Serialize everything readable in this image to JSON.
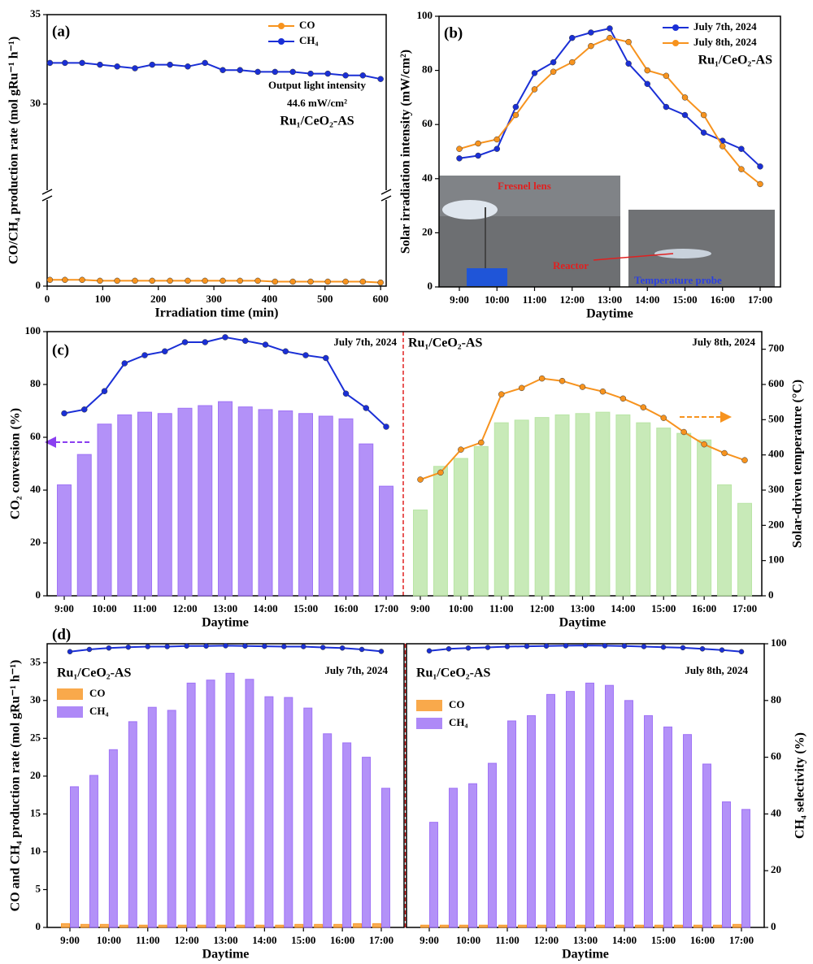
{
  "chart_data": [
    {
      "type": "line",
      "label": "(a)",
      "xlabel": "Irradiation time (min)",
      "ylabel": "CO/CH₄ production rate (mol gRu⁻¹ h⁻¹)",
      "xlim": [
        0,
        610
      ],
      "xticks": [
        0,
        100,
        200,
        300,
        400,
        500,
        600
      ],
      "ylim": [
        0,
        35
      ],
      "ybreak": [
        5,
        25
      ],
      "yticks": [
        0,
        30,
        35
      ],
      "legend": "upper right",
      "x": [
        5,
        32,
        63,
        95,
        126,
        158,
        189,
        221,
        253,
        284,
        316,
        347,
        379,
        410,
        442,
        474,
        505,
        537,
        568,
        600
      ],
      "series": [
        {
          "name": "CO",
          "color": "#f7931e",
          "values": [
            0.35,
            0.35,
            0.35,
            0.3,
            0.3,
            0.3,
            0.3,
            0.3,
            0.3,
            0.3,
            0.3,
            0.3,
            0.3,
            0.25,
            0.25,
            0.25,
            0.25,
            0.25,
            0.25,
            0.2
          ]
        },
        {
          "name": "CH₄",
          "color": "#1a2fd6",
          "values": [
            32.3,
            32.3,
            32.3,
            32.2,
            32.1,
            32.0,
            32.2,
            32.2,
            32.1,
            32.3,
            31.9,
            31.9,
            31.8,
            31.8,
            31.8,
            31.7,
            31.7,
            31.6,
            31.6,
            31.4
          ]
        }
      ],
      "annotations": [
        "Output light intensity",
        "44.6 mW/cm²",
        "Ru₁/CeO₂-AS"
      ]
    },
    {
      "type": "line",
      "label": "(b)",
      "xlabel": "Daytime",
      "ylabel": "Solar irradiation intensity (mW/cm²)",
      "categories": [
        "9:00",
        null,
        "10:00",
        null,
        "11:00",
        null,
        "12:00",
        null,
        "13:00",
        null,
        "14:00",
        null,
        "15:00",
        null,
        "16:00",
        null,
        "17:00"
      ],
      "ylim": [
        0,
        100
      ],
      "yticks": [
        0,
        20,
        40,
        60,
        80,
        100
      ],
      "legend": "upper right",
      "series": [
        {
          "name": "July 7th, 2024",
          "color": "#1a2fd6",
          "values": [
            47.5,
            48.5,
            51,
            66.5,
            79,
            83,
            92,
            94,
            95.5,
            82.5,
            75,
            66.5,
            63.5,
            57,
            54,
            51,
            44.5
          ]
        },
        {
          "name": "July 8th, 2024",
          "color": "#f7931e",
          "values": [
            51,
            53,
            54.5,
            63.5,
            73,
            79.5,
            83,
            89,
            92,
            90.5,
            80,
            78,
            70,
            63.5,
            52,
            43.5,
            38
          ]
        }
      ],
      "annotation": "Ru₁/CeO₂-AS",
      "inset_labels": [
        "Fresnel lens",
        "Reactor",
        "Temperature probe"
      ]
    },
    {
      "type": "bar-line",
      "label": "(c)",
      "xlabel": "Daytime",
      "ylabel": "CO₂ conversion (%)",
      "y2label": "Solar-driven temperature (°C)",
      "categories": [
        "9:00",
        null,
        "10:00",
        null,
        "11:00",
        null,
        "12:00",
        null,
        "13:00",
        null,
        "14:00",
        null,
        "15:00",
        null,
        "16:00",
        null,
        "17:00"
      ],
      "ylim": [
        0,
        100
      ],
      "yticks": [
        0,
        20,
        40,
        60,
        80,
        100
      ],
      "y2lim": [
        0,
        750
      ],
      "y2ticks": [
        0,
        100,
        200,
        300,
        400,
        500,
        600,
        700
      ],
      "annotation": "Ru₁/CeO₂-AS",
      "panels": [
        {
          "date": "July 7th, 2024",
          "bars": {
            "color": "#9a6cf5",
            "values": [
              42,
              53.5,
              65,
              68.5,
              69.5,
              69,
              71,
              72,
              73.5,
              71.5,
              70.5,
              70,
              69,
              68,
              67,
              57.5,
              41.5
            ]
          },
          "line": {
            "color": "#1a2fd6",
            "axis": "y2",
            "values": [
              518,
              529,
              581,
              660,
              683,
              694,
              720,
              720,
              734,
              724,
              713,
              694,
              683,
              675,
              574,
              533,
              480
            ]
          }
        },
        {
          "date": "July 8th, 2024",
          "bars": {
            "color": "#b5e3a0",
            "values": [
              32.5,
              49,
              52,
              56.5,
              65.5,
              66.5,
              67.5,
              68.5,
              69,
              69.5,
              68.5,
              65.5,
              63.5,
              61.5,
              59,
              42,
              35
            ]
          },
          "line": {
            "color": "#f7931e",
            "axis": "y2",
            "values": [
              330,
              350,
              415,
              435,
              572,
              590,
              617,
              610,
              593,
              580,
              560,
              535,
              505,
              465,
              430,
              405,
              385
            ]
          }
        }
      ]
    },
    {
      "type": "bar-line",
      "label": "(d)",
      "xlabel": "Daytime",
      "ylabel": "CO and CH₄ production rate (mol gRu⁻¹ h⁻¹)",
      "y2label": "CH₄ selectivity (%)",
      "categories": [
        "9:00",
        null,
        "10:00",
        null,
        "11:00",
        null,
        "12:00",
        null,
        "13:00",
        null,
        "14:00",
        null,
        "15:00",
        null,
        "16:00",
        null,
        "17:00"
      ],
      "ylim": [
        0,
        37.5
      ],
      "yticks": [
        0,
        5,
        10,
        15,
        20,
        25,
        30,
        35
      ],
      "y2lim": [
        0,
        100
      ],
      "y2ticks": [
        0,
        20,
        40,
        60,
        80,
        100
      ],
      "annotation": "Ru₁/CeO₂-AS",
      "panels": [
        {
          "date": "July 7th, 2024",
          "series": [
            {
              "name": "CO",
              "color": "#f7931e",
              "values": [
                0.5,
                0.4,
                0.4,
                0.3,
                0.3,
                0.3,
                0.3,
                0.3,
                0.3,
                0.3,
                0.3,
                0.3,
                0.4,
                0.4,
                0.4,
                0.5,
                0.5
              ]
            },
            {
              "name": "CH₄",
              "color": "#9a6cf5",
              "values": [
                18.6,
                20.1,
                23.5,
                27.2,
                29.1,
                28.7,
                32.3,
                32.7,
                33.6,
                32.8,
                30.5,
                30.4,
                29.0,
                25.6,
                24.4,
                22.5,
                18.4
              ]
            }
          ],
          "line": {
            "color": "#1a2fd6",
            "axis": "y2",
            "values": [
              97.2,
              98,
              98.5,
              98.8,
              99,
              99,
              99.2,
              99.2,
              99.3,
              99.2,
              99.1,
              99,
              99,
              98.7,
              98.5,
              98,
              97.3
            ]
          }
        },
        {
          "date": "July 8th, 2024",
          "series": [
            {
              "name": "CO",
              "color": "#f7931e",
              "values": [
                0.3,
                0.3,
                0.3,
                0.3,
                0.3,
                0.3,
                0.3,
                0.3,
                0.3,
                0.3,
                0.3,
                0.3,
                0.3,
                0.3,
                0.3,
                0.3,
                0.4
              ]
            },
            {
              "name": "CH₄",
              "color": "#9a6cf5",
              "values": [
                13.9,
                18.4,
                19.0,
                21.7,
                27.3,
                28.0,
                30.8,
                31.2,
                32.3,
                32.0,
                30.0,
                28.0,
                26.5,
                25.5,
                21.6,
                16.6,
                15.6
              ]
            }
          ],
          "line": {
            "color": "#1a2fd6",
            "axis": "y2",
            "values": [
              97.5,
              98.2,
              98.5,
              98.7,
              99,
              99.1,
              99.2,
              99.3,
              99.4,
              99.3,
              99.2,
              99,
              98.8,
              98.6,
              98.2,
              97.8,
              97.2
            ]
          }
        }
      ]
    }
  ]
}
